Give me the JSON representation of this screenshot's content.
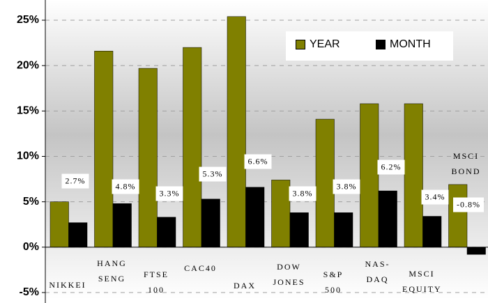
{
  "chart_data": {
    "type": "bar",
    "categories": [
      "NIKKEI",
      "HANG SENG",
      "FTSE 100",
      "CAC40",
      "DAX",
      "DOW JONES",
      "S&P 500",
      "NAS-DAQ",
      "MSCI EQUITY",
      "MSCI BOND"
    ],
    "series": [
      {
        "name": "YEAR",
        "color": "#808000",
        "values": [
          5.0,
          21.6,
          19.7,
          22.0,
          25.4,
          7.4,
          14.1,
          15.8,
          15.8,
          6.9
        ]
      },
      {
        "name": "MONTH",
        "color": "#000000",
        "values": [
          2.7,
          4.8,
          3.3,
          5.3,
          6.6,
          3.8,
          3.8,
          6.2,
          3.4,
          -0.8
        ],
        "value_labels": [
          "2.7%",
          "4.8%",
          "3.3%",
          "5.3%",
          "6.6%",
          "3.8%",
          "3.8%",
          "6.2%",
          "3.4%",
          "-0.8%"
        ]
      }
    ],
    "ylim": [
      -5,
      25
    ],
    "yticks": [
      {
        "value": -5,
        "label": "-5%"
      },
      {
        "value": 0,
        "label": "0%"
      },
      {
        "value": 5,
        "label": "5%"
      },
      {
        "value": 10,
        "label": "10%"
      },
      {
        "value": 15,
        "label": "15%"
      },
      {
        "value": 20,
        "label": "20%"
      },
      {
        "value": 25,
        "label": "25%"
      }
    ],
    "grid": true,
    "legend": "upper right"
  }
}
